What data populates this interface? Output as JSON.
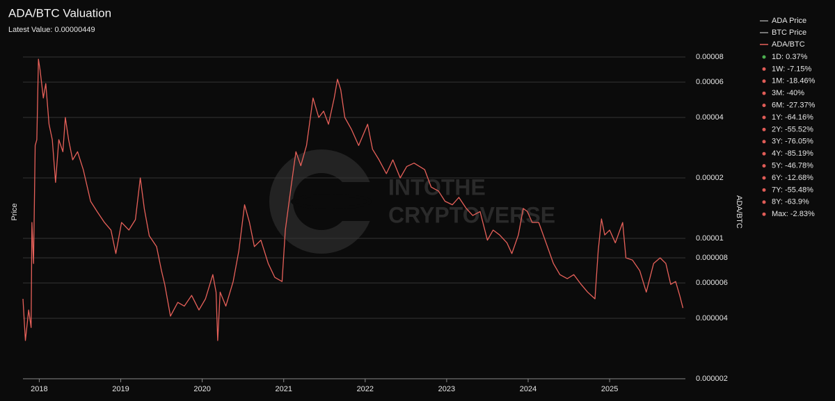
{
  "chart_data": {
    "type": "line",
    "title": "ADA/BTC Valuation",
    "subtitle": "Latest Value: 0.00000449",
    "y_label": "Price",
    "y2_label": "ADA/BTC",
    "watermark": [
      "INTOTHE",
      "CRYPTOVERSE"
    ],
    "log_y": true,
    "grid": true,
    "xlim": [
      2017.8,
      2025.93
    ],
    "xticks": [
      2018,
      2019,
      2020,
      2021,
      2022,
      2023,
      2024,
      2025
    ],
    "ylim": [
      2e-06,
      8e-05
    ],
    "yticks": [
      2e-06,
      4e-06,
      6e-06,
      8e-06,
      1e-05,
      2e-05,
      4e-05,
      6e-05,
      8e-05
    ],
    "x": [
      2017.8,
      2017.83,
      2017.87,
      2017.9,
      2017.91,
      2017.93,
      2017.95,
      2017.97,
      2017.99,
      2018.01,
      2018.05,
      2018.08,
      2018.12,
      2018.16,
      2018.2,
      2018.24,
      2018.29,
      2018.32,
      2018.36,
      2018.41,
      2018.47,
      2018.54,
      2018.63,
      2018.71,
      2018.8,
      2018.88,
      2018.94,
      2019.01,
      2019.1,
      2019.18,
      2019.24,
      2019.29,
      2019.35,
      2019.44,
      2019.5,
      2019.54,
      2019.61,
      2019.7,
      2019.78,
      2019.87,
      2019.96,
      2020.04,
      2020.13,
      2020.17,
      2020.19,
      2020.22,
      2020.29,
      2020.38,
      2020.45,
      2020.52,
      2020.58,
      2020.64,
      2020.72,
      2020.81,
      2020.89,
      2020.98,
      2021.02,
      2021.09,
      2021.15,
      2021.21,
      2021.28,
      2021.32,
      2021.36,
      2021.43,
      2021.49,
      2021.55,
      2021.62,
      2021.66,
      2021.7,
      2021.75,
      2021.83,
      2021.92,
      2022.03,
      2022.09,
      2022.17,
      2022.26,
      2022.34,
      2022.43,
      2022.51,
      2022.6,
      2022.73,
      2022.81,
      2022.9,
      2022.98,
      2023.07,
      2023.15,
      2023.24,
      2023.32,
      2023.41,
      2023.5,
      2023.57,
      2023.65,
      2023.74,
      2023.8,
      2023.88,
      2023.94,
      2023.99,
      2024.05,
      2024.13,
      2024.22,
      2024.31,
      2024.39,
      2024.48,
      2024.56,
      2024.65,
      2024.73,
      2024.82,
      2024.86,
      2024.9,
      2024.94,
      2025.0,
      2025.07,
      2025.16,
      2025.2,
      2025.28,
      2025.37,
      2025.45,
      2025.54,
      2025.62,
      2025.69,
      2025.75,
      2025.81,
      2025.86,
      2025.9
    ],
    "series": [
      {
        "name": "ADA/BTC",
        "color": "#e8615a",
        "values": [
          5e-06,
          3.1e-06,
          4.4e-06,
          3.6e-06,
          1.2e-05,
          7.5e-06,
          2.9e-05,
          3.1e-05,
          7.8e-05,
          6.9e-05,
          5e-05,
          5.9e-05,
          3.7e-05,
          3.1e-05,
          1.9e-05,
          3.1e-05,
          2.7e-05,
          4e-05,
          3.1e-05,
          2.46e-05,
          2.7e-05,
          2.2e-05,
          1.53e-05,
          1.36e-05,
          1.2e-05,
          1.1e-05,
          8.4e-06,
          1.2e-05,
          1.1e-05,
          1.24e-05,
          2e-05,
          1.4e-05,
          1.03e-05,
          9.1e-06,
          6.9e-06,
          5.9e-06,
          4.1e-06,
          4.8e-06,
          4.6e-06,
          5.2e-06,
          4.4e-06,
          5e-06,
          6.6e-06,
          5.4e-06,
          3.1e-06,
          5.4e-06,
          4.6e-06,
          6.1e-06,
          8.7e-06,
          1.47e-05,
          1.2e-05,
          9.1e-06,
          9.8e-06,
          7.5e-06,
          6.4e-06,
          6.1e-06,
          1.1e-05,
          1.8e-05,
          2.7e-05,
          2.3e-05,
          2.9e-05,
          3.8e-05,
          5e-05,
          4e-05,
          4.3e-05,
          3.7e-05,
          5e-05,
          6.2e-05,
          5.5e-05,
          4e-05,
          3.5e-05,
          2.9e-05,
          3.7e-05,
          2.78e-05,
          2.46e-05,
          2.1e-05,
          2.46e-05,
          2e-05,
          2.28e-05,
          2.37e-05,
          2.2e-05,
          1.8e-05,
          1.72e-05,
          1.53e-05,
          1.47e-05,
          1.6e-05,
          1.41e-05,
          1.3e-05,
          1.36e-05,
          9.8e-06,
          1.1e-05,
          1.04e-05,
          9.5e-06,
          8.4e-06,
          1.04e-05,
          1.41e-05,
          1.36e-05,
          1.2e-05,
          1.2e-05,
          9.5e-06,
          7.5e-06,
          6.6e-06,
          6.3e-06,
          6.6e-06,
          5.9e-06,
          5.4e-06,
          5e-06,
          8.7e-06,
          1.25e-05,
          1.04e-05,
          1.1e-05,
          9.5e-06,
          1.2e-05,
          8e-06,
          7.8e-06,
          6.9e-06,
          5.4e-06,
          7.5e-06,
          8e-06,
          7.5e-06,
          5.9e-06,
          6.1e-06,
          5.2e-06,
          4.5e-06
        ]
      }
    ],
    "legend_extra": [
      {
        "name": "ADA Price",
        "color": "#9a9a9a"
      },
      {
        "name": "BTC Price",
        "color": "#9a9a9a"
      }
    ],
    "stats": [
      {
        "label": "1D: 0.37%",
        "color": "#4caf50"
      },
      {
        "label": "1W: -7.15%",
        "color": "#e05c57"
      },
      {
        "label": "1M: -18.46%",
        "color": "#e05c57"
      },
      {
        "label": "3M: -40%",
        "color": "#e05c57"
      },
      {
        "label": "6M: -27.37%",
        "color": "#e05c57"
      },
      {
        "label": "1Y: -64.16%",
        "color": "#e05c57"
      },
      {
        "label": "2Y: -55.52%",
        "color": "#e05c57"
      },
      {
        "label": "3Y: -76.05%",
        "color": "#e05c57"
      },
      {
        "label": "4Y: -85.19%",
        "color": "#e05c57"
      },
      {
        "label": "5Y: -46.78%",
        "color": "#e05c57"
      },
      {
        "label": "6Y: -12.68%",
        "color": "#e05c57"
      },
      {
        "label": "7Y: -55.48%",
        "color": "#e05c57"
      },
      {
        "label": "8Y: -63.9%",
        "color": "#e05c57"
      },
      {
        "label": "Max: -2.83%",
        "color": "#e05c57"
      }
    ]
  }
}
